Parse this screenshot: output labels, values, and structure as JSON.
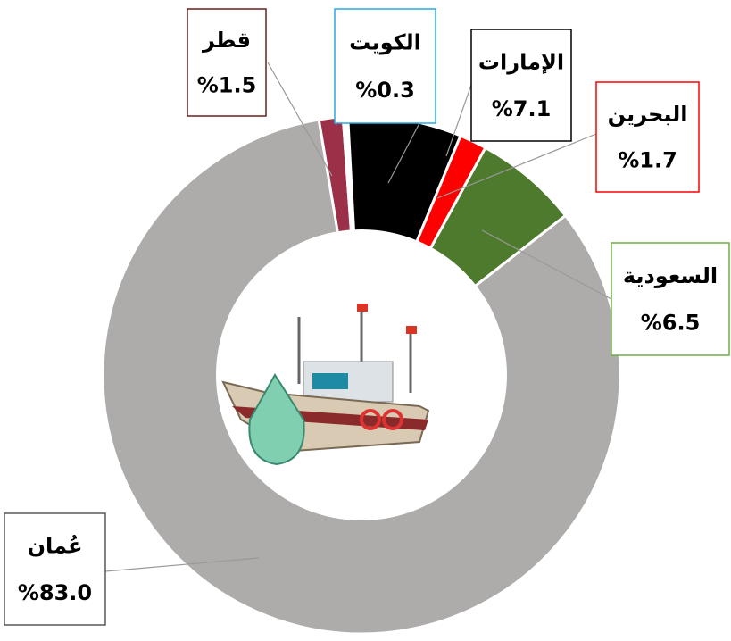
{
  "chart_data": {
    "type": "donut",
    "categories": [
      "قطر",
      "الكويت",
      "الإمارات",
      "البحرين",
      "السعودية",
      "عُمان"
    ],
    "values": [
      1.5,
      0.3,
      7.1,
      1.7,
      6.5,
      83.0
    ],
    "value_labels": [
      "%1.5",
      "%0.3",
      "%7.1",
      "%1.7",
      "%6.5",
      "%83.0"
    ],
    "colors": [
      "#9b3048",
      "#ffffff",
      "#000000",
      "#ff0000",
      "#4e7a2e",
      "#aeabab"
    ],
    "label_border_colors": [
      "#6b1f1f",
      "#29abe2",
      "#000000",
      "#ff0000",
      "#70ad47",
      "#595959"
    ]
  }
}
